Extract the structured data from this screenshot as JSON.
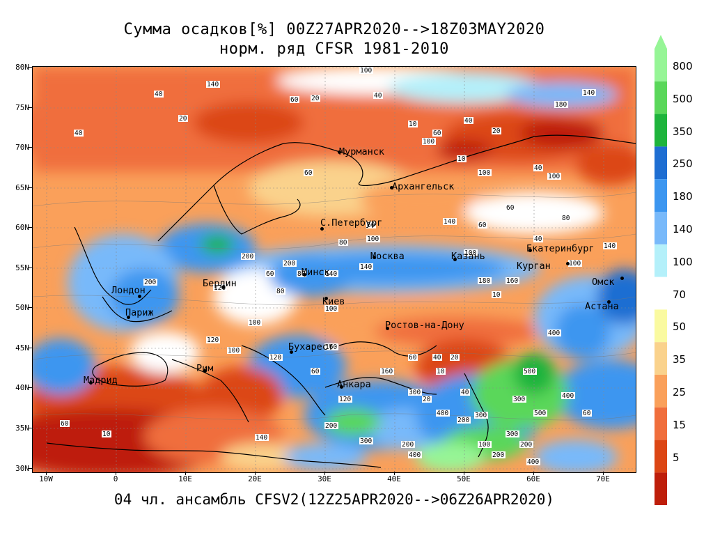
{
  "title_line1": "Сумма осадков[%] 00Z27APR2020-->18Z03MAY2020",
  "title_line2": "норм. ряд CFSR 1981-2010",
  "footer": "04 чл. ансамбль CFSV2(12Z25APR2020-->06Z26APR2020)",
  "lat_ticks": [
    "80N",
    "75N",
    "70N",
    "65N",
    "60N",
    "55N",
    "50N",
    "45N",
    "40N",
    "35N",
    "30N"
  ],
  "lon_ticks": [
    "10W",
    "0",
    "10E",
    "20E",
    "30E",
    "40E",
    "50E",
    "60E",
    "70E"
  ],
  "colorbar": {
    "labels": [
      "800",
      "500",
      "350",
      "250",
      "180",
      "140",
      "100",
      "70",
      "50",
      "35",
      "25",
      "15",
      "5"
    ],
    "colors": [
      "#96f596",
      "#5ad75a",
      "#1eb43c",
      "#1e6ed2",
      "#3c96f0",
      "#78b9fa",
      "#b4f0fa",
      "#ffffff",
      "#fafaa0",
      "#fad28c",
      "#faa05a",
      "#f06e3c",
      "#dc4614",
      "#be1e0a"
    ]
  },
  "cities": [
    {
      "name": "Мурманск"
    },
    {
      "name": "Архангельск"
    },
    {
      "name": "С.Петербург"
    },
    {
      "name": "Москва"
    },
    {
      "name": "Казань"
    },
    {
      "name": "Екатеринбург"
    },
    {
      "name": "Курган"
    },
    {
      "name": "Омск"
    },
    {
      "name": "Астана"
    },
    {
      "name": "Минск"
    },
    {
      "name": "Берлин"
    },
    {
      "name": "Лондон"
    },
    {
      "name": "Париж"
    },
    {
      "name": "Киев"
    },
    {
      "name": "Ростов-на-Дону"
    },
    {
      "name": "Бухарест"
    },
    {
      "name": "Рим"
    },
    {
      "name": "Мадрид"
    },
    {
      "name": "Анкара"
    }
  ],
  "contour_labels": [
    "100",
    "140",
    "40",
    "60",
    "20",
    "40",
    "140",
    "180",
    "40",
    "20",
    "10",
    "60",
    "100",
    "40",
    "100",
    "20",
    "40",
    "60",
    "10",
    "100",
    "60",
    "80",
    "100",
    "60",
    "80",
    "140",
    "100",
    "140",
    "60",
    "80",
    "200",
    "140",
    "180",
    "160",
    "200",
    "120",
    "200",
    "140",
    "80",
    "160",
    "100",
    "120",
    "60",
    "40",
    "10",
    "100",
    "120",
    "20",
    "60",
    "100",
    "400",
    "300",
    "500",
    "400",
    "300",
    "500",
    "400",
    "200",
    "300",
    "200",
    "100",
    "60",
    "300",
    "200",
    "400",
    "10",
    "20",
    "40",
    "40",
    "60",
    "160",
    "120",
    "200",
    "140",
    "100",
    "200",
    "300",
    "400",
    "10",
    "60"
  ]
}
